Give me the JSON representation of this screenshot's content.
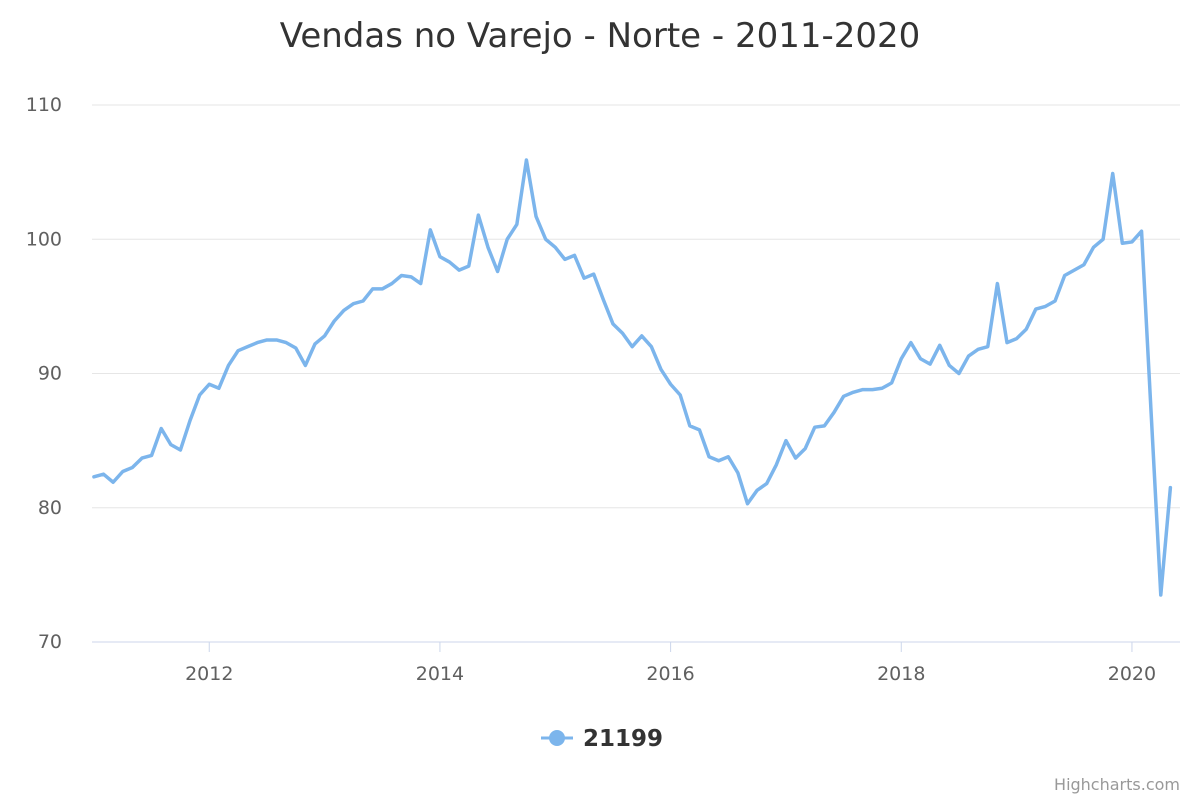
{
  "chart_data": {
    "type": "line",
    "title": "Vendas no Varejo - Norte - 2011-2020",
    "xlabel": "",
    "ylabel": "",
    "ylim": [
      70,
      110
    ],
    "yticks": [
      "70",
      "80",
      "90",
      "100",
      "110"
    ],
    "xlim": [
      "2011-01",
      "2020-06"
    ],
    "xticks": [
      "2012",
      "2014",
      "2016",
      "2018",
      "2020"
    ],
    "grid": true,
    "legend": "bottom-center",
    "credits": "Highcharts.com",
    "series": [
      {
        "name": "21199",
        "color": "#7cb5ec",
        "x": [
          "2011-01",
          "2011-02",
          "2011-03",
          "2011-04",
          "2011-05",
          "2011-06",
          "2011-07",
          "2011-08",
          "2011-09",
          "2011-10",
          "2011-11",
          "2011-12",
          "2012-01",
          "2012-02",
          "2012-03",
          "2012-04",
          "2012-05",
          "2012-06",
          "2012-07",
          "2012-08",
          "2012-09",
          "2012-10",
          "2012-11",
          "2012-12",
          "2013-01",
          "2013-02",
          "2013-03",
          "2013-04",
          "2013-05",
          "2013-06",
          "2013-07",
          "2013-08",
          "2013-09",
          "2013-10",
          "2013-11",
          "2013-12",
          "2014-01",
          "2014-02",
          "2014-03",
          "2014-04",
          "2014-05",
          "2014-06",
          "2014-07",
          "2014-08",
          "2014-09",
          "2014-10",
          "2014-11",
          "2014-12",
          "2015-01",
          "2015-02",
          "2015-03",
          "2015-04",
          "2015-05",
          "2015-06",
          "2015-07",
          "2015-08",
          "2015-09",
          "2015-10",
          "2015-11",
          "2015-12",
          "2016-01",
          "2016-02",
          "2016-03",
          "2016-04",
          "2016-05",
          "2016-06",
          "2016-07",
          "2016-08",
          "2016-09",
          "2016-10",
          "2016-11",
          "2016-12",
          "2017-01",
          "2017-02",
          "2017-03",
          "2017-04",
          "2017-05",
          "2017-06",
          "2017-07",
          "2017-08",
          "2017-09",
          "2017-10",
          "2017-11",
          "2017-12",
          "2018-01",
          "2018-02",
          "2018-03",
          "2018-04",
          "2018-05",
          "2018-06",
          "2018-07",
          "2018-08",
          "2018-09",
          "2018-10",
          "2018-11",
          "2018-12",
          "2019-01",
          "2019-02",
          "2019-03",
          "2019-04",
          "2019-05",
          "2019-06",
          "2019-07",
          "2019-08",
          "2019-09",
          "2019-10",
          "2019-11",
          "2019-12",
          "2020-01",
          "2020-02",
          "2020-03",
          "2020-04",
          "2020-05"
        ],
        "values": [
          82.3,
          82.5,
          81.9,
          82.7,
          83.0,
          83.7,
          83.9,
          85.9,
          84.7,
          84.3,
          86.5,
          88.4,
          89.2,
          88.9,
          90.6,
          91.7,
          92.0,
          92.3,
          92.5,
          92.5,
          92.3,
          91.9,
          90.6,
          92.2,
          92.8,
          93.9,
          94.7,
          95.2,
          95.4,
          96.3,
          96.3,
          96.7,
          97.3,
          97.2,
          96.7,
          100.7,
          98.7,
          98.3,
          97.7,
          98.0,
          101.8,
          99.4,
          97.6,
          100.0,
          101.1,
          105.9,
          101.7,
          100.0,
          99.4,
          98.5,
          98.8,
          97.1,
          97.4,
          95.5,
          93.7,
          93.0,
          92.0,
          92.8,
          92.0,
          90.3,
          89.2,
          88.4,
          86.1,
          85.8,
          83.8,
          83.5,
          83.8,
          82.6,
          80.3,
          81.3,
          81.8,
          83.2,
          85.0,
          83.7,
          84.4,
          86.0,
          86.1,
          87.1,
          88.3,
          88.6,
          88.8,
          88.8,
          88.9,
          89.3,
          91.1,
          92.3,
          91.1,
          90.7,
          92.1,
          90.6,
          90.0,
          91.3,
          91.8,
          92.0,
          96.7,
          92.3,
          92.6,
          93.3,
          94.8,
          95.0,
          95.4,
          97.3,
          97.7,
          98.1,
          99.4,
          100.0,
          104.9,
          99.7,
          99.8,
          100.6,
          87.0,
          73.5,
          81.5
        ]
      }
    ]
  }
}
